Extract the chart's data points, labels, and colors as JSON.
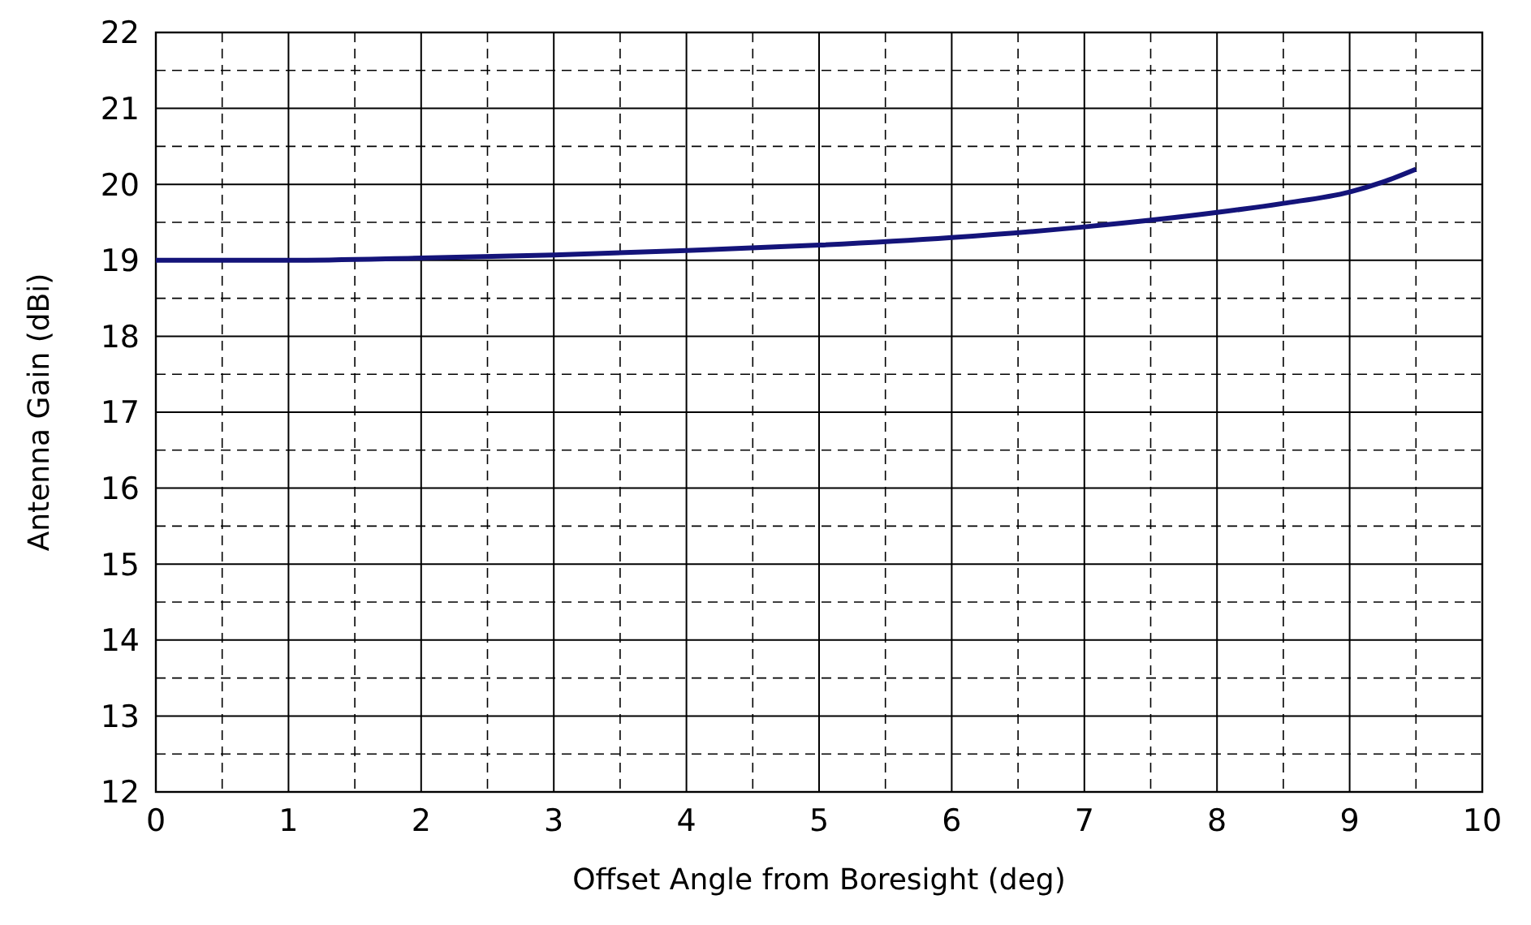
{
  "chart_data": {
    "type": "line",
    "xlabel": "Offset Angle from Boresight (deg)",
    "ylabel": "Antenna Gain (dBi)",
    "x": [
      0,
      1,
      2,
      3,
      4,
      5,
      6,
      7,
      8,
      8.5,
      9,
      9.25,
      9.5
    ],
    "series": [
      {
        "color": "#14147a",
        "values": [
          19.0,
          19.0,
          19.03,
          19.07,
          19.13,
          19.2,
          19.3,
          19.44,
          19.63,
          19.75,
          19.9,
          20.03,
          20.2
        ]
      }
    ],
    "xlim": [
      0,
      10
    ],
    "ylim": [
      12,
      22
    ],
    "xticks": [
      0,
      {
        "value": 0.5,
        "label": null
      },
      1,
      {
        "value": 1.5,
        "label": null
      },
      2,
      {
        "value": 2.5,
        "label": null
      },
      3,
      {
        "value": 3.5,
        "label": null
      },
      4,
      {
        "value": 4.5,
        "label": null
      },
      5,
      {
        "value": 5.5,
        "label": null
      },
      6,
      {
        "value": 6.5,
        "label": null
      },
      7,
      {
        "value": 7.5,
        "label": null
      },
      8,
      {
        "value": 8.5,
        "label": null
      },
      9,
      {
        "value": 9.5,
        "label": null
      },
      10
    ],
    "yticks": [
      12,
      {
        "value": 12.5,
        "label": null
      },
      13,
      {
        "value": 13.5,
        "label": null
      },
      14,
      {
        "value": 14.5,
        "label": null
      },
      15,
      {
        "value": 15.5,
        "label": null
      },
      16,
      {
        "value": 16.5,
        "label": null
      },
      17,
      {
        "value": 17.5,
        "label": null
      },
      18,
      {
        "value": 18.5,
        "label": null
      },
      19,
      {
        "value": 19.5,
        "label": null
      },
      20,
      {
        "value": 20.5,
        "label": null
      },
      21,
      {
        "value": 21.5,
        "label": null
      },
      22
    ],
    "grid": true,
    "line_style": "solid"
  }
}
